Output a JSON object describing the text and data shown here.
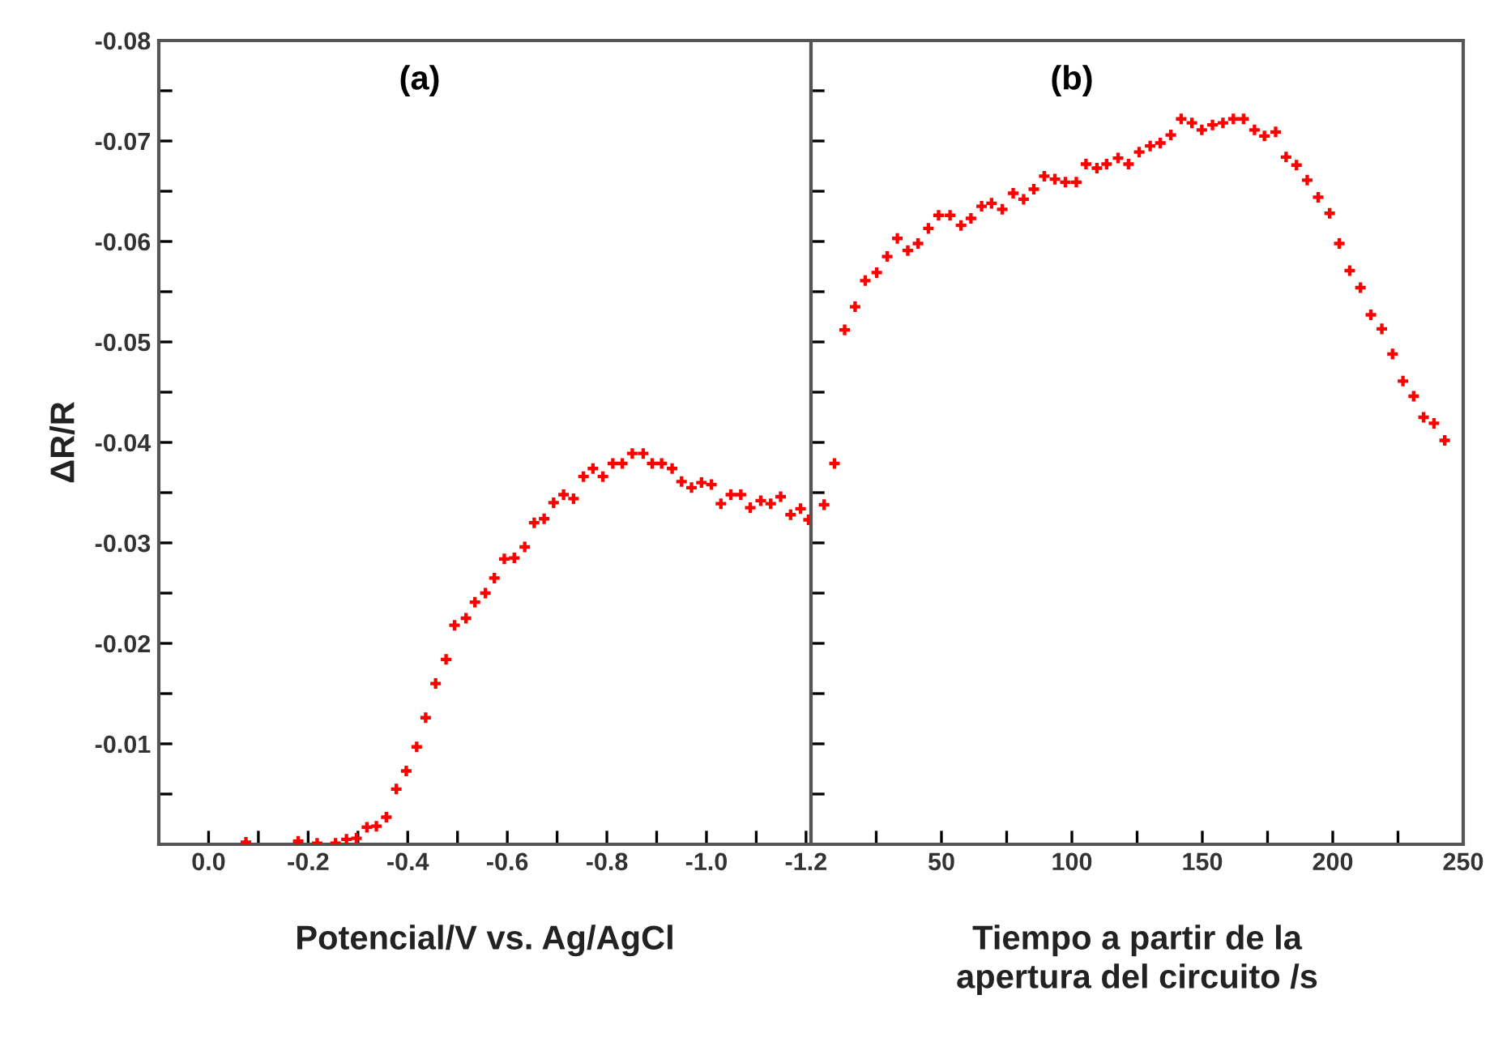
{
  "chart_data": [
    {
      "type": "scatter",
      "color": "#ff0000",
      "marker": "cross",
      "ylabel": "ΔR/R",
      "xlabel": "Potencial/V vs. Ag/AgCl",
      "annotations": [
        "(a)"
      ],
      "grid": false,
      "legend": false,
      "x": [
        -0.075,
        -0.18,
        -0.218,
        -0.255,
        -0.277,
        -0.297,
        -0.318,
        -0.337,
        -0.357,
        -0.377,
        -0.397,
        -0.418,
        -0.436,
        -0.456,
        -0.477,
        -0.494,
        -0.517,
        -0.535,
        -0.556,
        -0.574,
        -0.594,
        -0.614,
        -0.635,
        -0.654,
        -0.674,
        -0.693,
        -0.713,
        -0.733,
        -0.753,
        -0.772,
        -0.792,
        -0.812,
        -0.831,
        -0.851,
        -0.873,
        -0.891,
        -0.91,
        -0.931,
        -0.95,
        -0.97,
        -0.99,
        -1.01,
        -1.029,
        -1.049,
        -1.069,
        -1.088,
        -1.109,
        -1.129,
        -1.149,
        -1.169,
        -1.189,
        -1.205
      ],
      "values": [
        -0.0002,
        -0.0003,
        -0.0001,
        -0.0001,
        -0.0005,
        -0.0006,
        -0.0017,
        -0.0018,
        -0.0027,
        -0.0055,
        -0.0073,
        -0.0097,
        -0.0126,
        -0.016,
        -0.0184,
        -0.0218,
        -0.0225,
        -0.0241,
        -0.025,
        -0.0265,
        -0.0284,
        -0.0285,
        -0.0296,
        -0.032,
        -0.0324,
        -0.034,
        -0.0348,
        -0.0344,
        -0.0366,
        -0.0374,
        -0.0366,
        -0.0379,
        -0.0379,
        -0.0389,
        -0.0389,
        -0.0379,
        -0.0379,
        -0.0374,
        -0.0361,
        -0.0355,
        -0.036,
        -0.0358,
        -0.0339,
        -0.0348,
        -0.0348,
        -0.0335,
        -0.0342,
        -0.0339,
        -0.0346,
        -0.0328,
        -0.0334,
        -0.0323
      ],
      "xlim": [
        0.1,
        -1.21
      ],
      "ylim": [
        0,
        -0.08
      ],
      "xticks": [
        {
          "value": 0,
          "label": "0.0"
        },
        {
          "value": -0.1,
          "label": null
        },
        -0.2,
        {
          "value": -0.3,
          "label": null
        },
        -0.4,
        {
          "value": -0.5,
          "label": null
        },
        -0.6,
        {
          "value": -0.7,
          "label": null
        },
        -0.8,
        {
          "value": -0.9,
          "label": null
        },
        {
          "value": -1,
          "label": "-1.0"
        },
        {
          "value": -1.1,
          "label": null
        },
        -1.2
      ],
      "yticks": [
        {
          "value": -0.005,
          "label": null
        },
        -0.01,
        {
          "value": -0.015,
          "label": null
        },
        -0.02,
        {
          "value": -0.025,
          "label": null
        },
        -0.03,
        {
          "value": -0.035,
          "label": null
        },
        -0.04,
        {
          "value": -0.045,
          "label": null
        },
        -0.05,
        {
          "value": -0.055,
          "label": null
        },
        -0.06,
        {
          "value": -0.065,
          "label": null
        },
        -0.07,
        {
          "value": -0.075,
          "label": null
        },
        -0.08
      ]
    },
    {
      "type": "scatter",
      "color": "#ff0000",
      "marker": "cross",
      "xlabel": "Tiempo a partir de la\napertura del circuito /s",
      "annotations": [
        "(b)"
      ],
      "grid": false,
      "legend": false,
      "tick_labels": "x",
      "x": [
        5,
        9.0,
        12.9,
        16.9,
        20.8,
        25.2,
        29.2,
        33.1,
        37.1,
        41.0,
        45,
        48.9,
        53.3,
        57.5,
        61.3,
        65.4,
        69.2,
        73.3,
        77.5,
        81.5,
        85.4,
        89.4,
        93.5,
        97.5,
        101.7,
        105.4,
        109.6,
        113.3,
        117.7,
        121.7,
        125.8,
        130,
        133.9,
        137.9,
        141.9,
        146,
        149.8,
        153.9,
        157.9,
        161.9,
        165.8,
        170,
        173.8,
        178.1,
        182.1,
        186.1,
        190.2,
        194.4,
        198.8,
        202.5,
        206.5,
        210.6,
        214.6,
        218.8,
        222.9,
        226.9,
        231.0,
        234.8,
        238.8,
        242.9
      ],
      "values": [
        -0.0338,
        -0.0379,
        -0.0512,
        -0.0535,
        -0.0561,
        -0.0569,
        -0.0585,
        -0.0603,
        -0.0591,
        -0.0598,
        -0.0613,
        -0.0626,
        -0.0626,
        -0.0616,
        -0.0623,
        -0.0635,
        -0.0638,
        -0.0632,
        -0.0648,
        -0.0642,
        -0.0652,
        -0.0665,
        -0.0662,
        -0.0659,
        -0.0659,
        -0.0677,
        -0.0673,
        -0.0677,
        -0.0683,
        -0.0677,
        -0.0689,
        -0.0695,
        -0.0698,
        -0.0706,
        -0.0722,
        -0.0718,
        -0.0711,
        -0.0716,
        -0.0718,
        -0.0722,
        -0.0722,
        -0.0711,
        -0.0705,
        -0.0709,
        -0.0684,
        -0.0676,
        -0.0661,
        -0.0644,
        -0.0628,
        -0.0598,
        -0.0571,
        -0.0554,
        -0.0527,
        -0.0513,
        -0.0488,
        -0.0461,
        -0.0446,
        -0.0425,
        -0.0419,
        -0.0402
      ],
      "xlim": [
        0,
        250
      ],
      "ylim": [
        0,
        -0.08
      ],
      "xticks": [
        {
          "value": 25,
          "label": null
        },
        50,
        {
          "value": 75,
          "label": null
        },
        100,
        {
          "value": 125,
          "label": null
        },
        150,
        {
          "value": 175,
          "label": null
        },
        200,
        {
          "value": 225,
          "label": null
        },
        250
      ],
      "yticks": [
        {
          "value": -0.005,
          "label": null
        },
        {
          "value": -0.01,
          "label": null
        },
        {
          "value": -0.015,
          "label": null
        },
        {
          "value": -0.02,
          "label": null
        },
        {
          "value": -0.025,
          "label": null
        },
        {
          "value": -0.03,
          "label": null
        },
        {
          "value": -0.035,
          "label": null
        },
        {
          "value": -0.04,
          "label": null
        },
        {
          "value": -0.045,
          "label": null
        },
        {
          "value": -0.05,
          "label": null
        },
        {
          "value": -0.055,
          "label": null
        },
        {
          "value": -0.06,
          "label": null
        },
        {
          "value": -0.065,
          "label": null
        },
        {
          "value": -0.07,
          "label": null
        },
        {
          "value": -0.075,
          "label": null
        },
        {
          "value": -0.08,
          "label": null
        }
      ]
    }
  ]
}
